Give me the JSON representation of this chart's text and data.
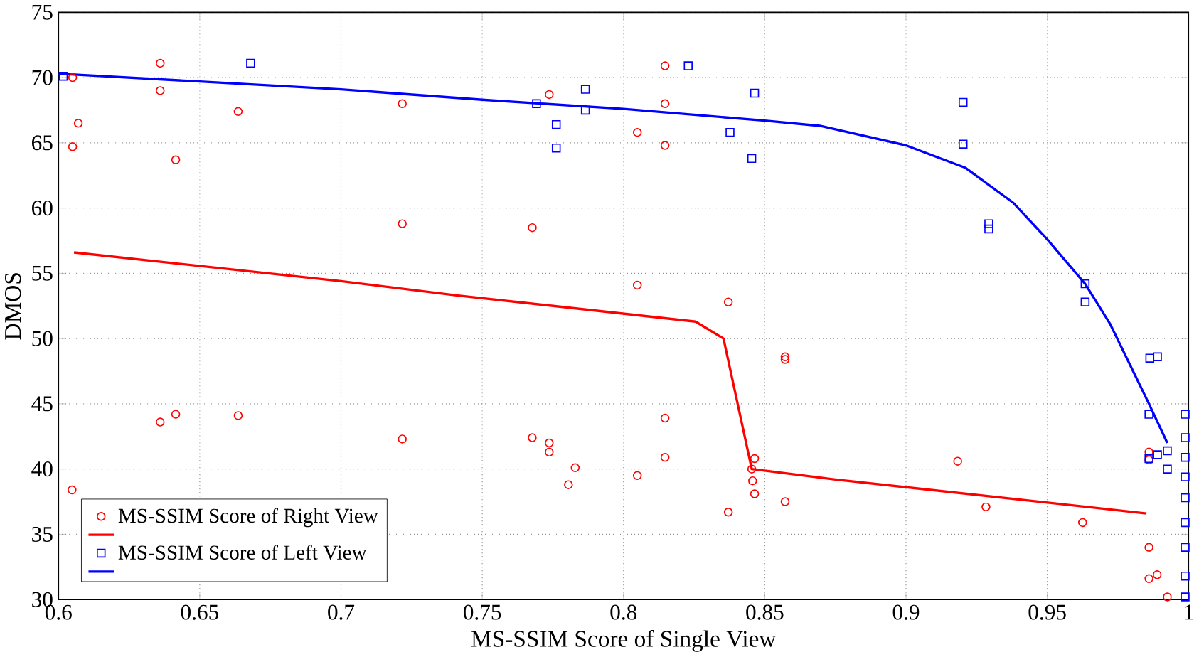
{
  "chart_data": {
    "type": "scatter",
    "xlabel": "MS-SSIM Score of Single View",
    "ylabel": "DMOS",
    "xlim": [
      0.6,
      1
    ],
    "ylim": [
      30,
      75
    ],
    "xticks": [
      0.6,
      0.65,
      0.7,
      0.75,
      0.8,
      0.85,
      0.9,
      0.95,
      1
    ],
    "yticks": [
      30,
      35,
      40,
      45,
      50,
      55,
      60,
      65,
      70,
      75
    ],
    "grid": true,
    "legend": "bottom left",
    "series": [
      {
        "name": "MS-SSIM Score of Right View",
        "marker": "circle",
        "color": "#ff0000",
        "x": [
          0.605,
          0.607,
          0.605,
          0.636,
          0.636,
          0.6415,
          0.6636,
          0.7217,
          0.7217,
          0.636,
          0.6415,
          0.6636,
          0.7217,
          0.6048,
          0.7737,
          0.8147,
          0.8147,
          0.8049,
          0.8147,
          0.7677,
          0.8049,
          0.8371,
          0.8572,
          0.8572,
          0.7677,
          0.7737,
          0.7737,
          0.7829,
          0.7805,
          0.8049,
          0.8147,
          0.8147,
          0.8464,
          0.8454,
          0.8457,
          0.8464,
          0.8371,
          0.8572,
          0.9183,
          0.9283,
          0.9625,
          0.986,
          0.986,
          0.986,
          0.986,
          0.9889,
          0.9925
        ],
        "values": [
          70.0,
          66.5,
          64.7,
          71.1,
          69.0,
          63.7,
          67.4,
          68.0,
          58.8,
          43.6,
          44.2,
          44.1,
          42.3,
          38.4,
          68.7,
          70.9,
          68.0,
          65.8,
          64.8,
          58.5,
          54.1,
          52.8,
          48.6,
          48.4,
          42.4,
          42.0,
          41.3,
          40.1,
          38.8,
          39.5,
          43.9,
          40.9,
          40.8,
          40.0,
          39.1,
          38.1,
          36.7,
          37.5,
          40.6,
          37.1,
          35.9,
          41.3,
          40.7,
          34.0,
          31.6,
          31.9,
          30.2
        ]
      },
      {
        "type": "line",
        "marker": "none",
        "color": "#ff0000",
        "x": [
          0.6055,
          0.7,
          0.7414,
          0.8255,
          0.8354,
          0.8454,
          0.875,
          0.9851
        ],
        "values": [
          56.6,
          54.4,
          53.3,
          51.3,
          50.0,
          40.0,
          39.2,
          36.6
        ]
      },
      {
        "name": "MS-SSIM Score of Left View",
        "marker": "square",
        "color": "#0000ff",
        "x": [
          0.6017,
          0.668,
          0.7692,
          0.7865,
          0.7865,
          0.7762,
          0.7762,
          0.8229,
          0.8464,
          0.8377,
          0.8454,
          0.9202,
          0.9202,
          0.9293,
          0.9293,
          0.9634,
          0.9634,
          0.9863,
          0.989,
          0.986,
          0.9925,
          0.989,
          0.986,
          0.9925,
          0.9988,
          0.9988,
          0.9988,
          0.9988,
          0.9988,
          0.9988,
          0.9988,
          0.9988,
          0.9988
        ],
        "values": [
          70.1,
          71.1,
          68.0,
          69.1,
          67.5,
          66.4,
          64.6,
          70.9,
          68.8,
          65.8,
          63.8,
          68.1,
          64.9,
          58.8,
          58.4,
          54.2,
          52.8,
          48.5,
          48.6,
          44.2,
          41.4,
          41.1,
          40.8,
          40.0,
          44.2,
          42.4,
          40.9,
          39.4,
          37.8,
          35.9,
          34.0,
          31.8,
          30.2
        ]
      },
      {
        "type": "line",
        "marker": "none",
        "color": "#0000ff",
        "x": [
          0.6,
          0.7,
          0.75,
          0.8,
          0.85,
          0.8695,
          0.9,
          0.9209,
          0.938,
          0.95,
          0.9634,
          0.9723,
          0.986,
          0.9925
        ],
        "values": [
          70.3,
          69.1,
          68.3,
          67.6,
          66.7,
          66.3,
          64.8,
          63.1,
          60.4,
          57.6,
          54.2,
          51.1,
          45.0,
          42.0
        ]
      }
    ]
  }
}
